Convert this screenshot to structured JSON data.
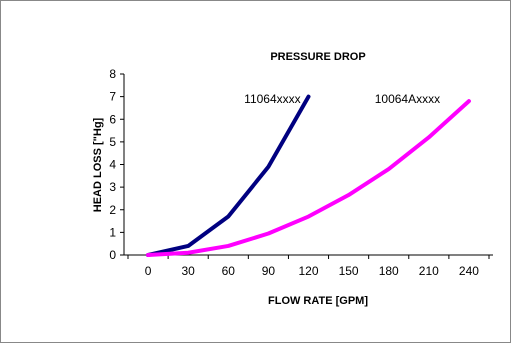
{
  "chart_data": {
    "type": "line",
    "title": "PRESSURE DROP",
    "xlabel": "FLOW RATE [GPM]",
    "ylabel": "HEAD LOSS [\"Hg]",
    "x_ticks": [
      "0",
      "30",
      "60",
      "90",
      "120",
      "150",
      "180",
      "210",
      "240"
    ],
    "y_ticks": [
      "0",
      "1",
      "2",
      "3",
      "4",
      "5",
      "6",
      "7",
      "8"
    ],
    "xlim": [
      -18,
      258
    ],
    "ylim": [
      0,
      8
    ],
    "grid": false,
    "legend": "none (series labeled inline)",
    "series": [
      {
        "name": "11064xxxx",
        "color": "#000080",
        "x": [
          0,
          30,
          60,
          90,
          120
        ],
        "y": [
          0,
          0.4,
          1.7,
          3.9,
          7.0
        ]
      },
      {
        "name": "10064Axxxx",
        "color": "#FF00FF",
        "x": [
          0,
          30,
          60,
          90,
          120,
          150,
          180,
          210,
          240
        ],
        "y": [
          0,
          0.1,
          0.4,
          0.95,
          1.7,
          2.65,
          3.8,
          5.2,
          6.8
        ]
      }
    ]
  }
}
